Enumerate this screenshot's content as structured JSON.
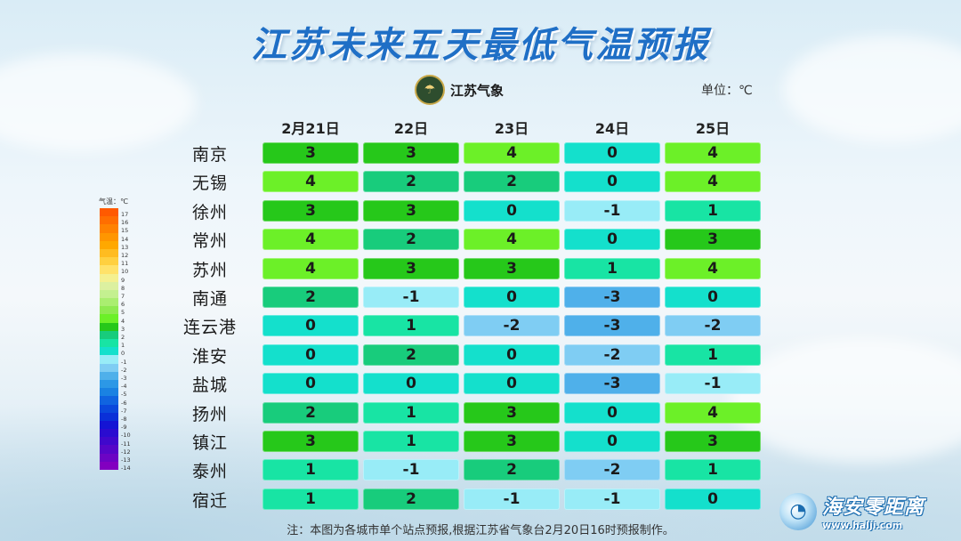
{
  "title": "江苏未来五天最低气温预报",
  "logo": {
    "text": "江苏气象",
    "icon": "meteorology-emblem-icon"
  },
  "unit_label": "单位：℃",
  "columns": [
    "2月21日",
    "22日",
    "23日",
    "24日",
    "25日"
  ],
  "rows": [
    {
      "city": "南京",
      "values": [
        3,
        3,
        4,
        0,
        4
      ]
    },
    {
      "city": "无锡",
      "values": [
        4,
        2,
        2,
        0,
        4
      ]
    },
    {
      "city": "徐州",
      "values": [
        3,
        3,
        0,
        -1,
        1
      ]
    },
    {
      "city": "常州",
      "values": [
        4,
        2,
        4,
        0,
        3
      ]
    },
    {
      "city": "苏州",
      "values": [
        4,
        3,
        3,
        1,
        4
      ]
    },
    {
      "city": "南通",
      "values": [
        2,
        -1,
        0,
        -3,
        0
      ]
    },
    {
      "city": "连云港",
      "values": [
        0,
        1,
        -2,
        -3,
        -2
      ]
    },
    {
      "city": "淮安",
      "values": [
        0,
        2,
        0,
        -2,
        1
      ]
    },
    {
      "city": "盐城",
      "values": [
        0,
        0,
        0,
        -3,
        -1
      ]
    },
    {
      "city": "扬州",
      "values": [
        2,
        1,
        3,
        0,
        4
      ]
    },
    {
      "city": "镇江",
      "values": [
        3,
        1,
        3,
        0,
        3
      ]
    },
    {
      "city": "泰州",
      "values": [
        1,
        -1,
        2,
        -2,
        1
      ]
    },
    {
      "city": "宿迁",
      "values": [
        1,
        2,
        -1,
        -1,
        0
      ]
    }
  ],
  "value_colors": {
    "-3": "#4fb0ea",
    "-2": "#7fcdf3",
    "-1": "#98ecf7",
    "0": "#14e0cc",
    "1": "#18e4a4",
    "2": "#18cc7c",
    "3": "#26c81a",
    "4": "#6cf028"
  },
  "legend": {
    "title": "气温：℃",
    "ticks": [
      "17",
      "16",
      "15",
      "14",
      "13",
      "12",
      "11",
      "10",
      "9",
      "8",
      "7",
      "6",
      "5",
      "4",
      "3",
      "2",
      "1",
      "0",
      "-1",
      "-2",
      "-3",
      "-4",
      "-5",
      "-6",
      "-7",
      "-8",
      "-9",
      "-10",
      "-11",
      "-12",
      "-13",
      "-14"
    ],
    "colors": [
      "#ff5a00",
      "#ff6e00",
      "#ff8200",
      "#ff9600",
      "#ffa800",
      "#ffbc20",
      "#ffd040",
      "#ffe26a",
      "#f4f090",
      "#dcf0a0",
      "#c4f090",
      "#aaee70",
      "#8eea50",
      "#6cf028",
      "#26c81a",
      "#18cc7c",
      "#18e4a4",
      "#14e0cc",
      "#98ecf7",
      "#7fcdf3",
      "#4fb0ea",
      "#2c98e6",
      "#1a82e2",
      "#1064e0",
      "#0a48dc",
      "#0a30d8",
      "#1414d4",
      "#2a0cd0",
      "#4008cc",
      "#5606c8",
      "#6c04c4",
      "#8200c0"
    ]
  },
  "note": "注：本图为各城市单个站点预报,根据江苏省气象台2月20日16时预报制作。",
  "watermark": {
    "name": "海安零距离",
    "url": "www.halji.com",
    "icon": "swirl-logo-icon"
  }
}
